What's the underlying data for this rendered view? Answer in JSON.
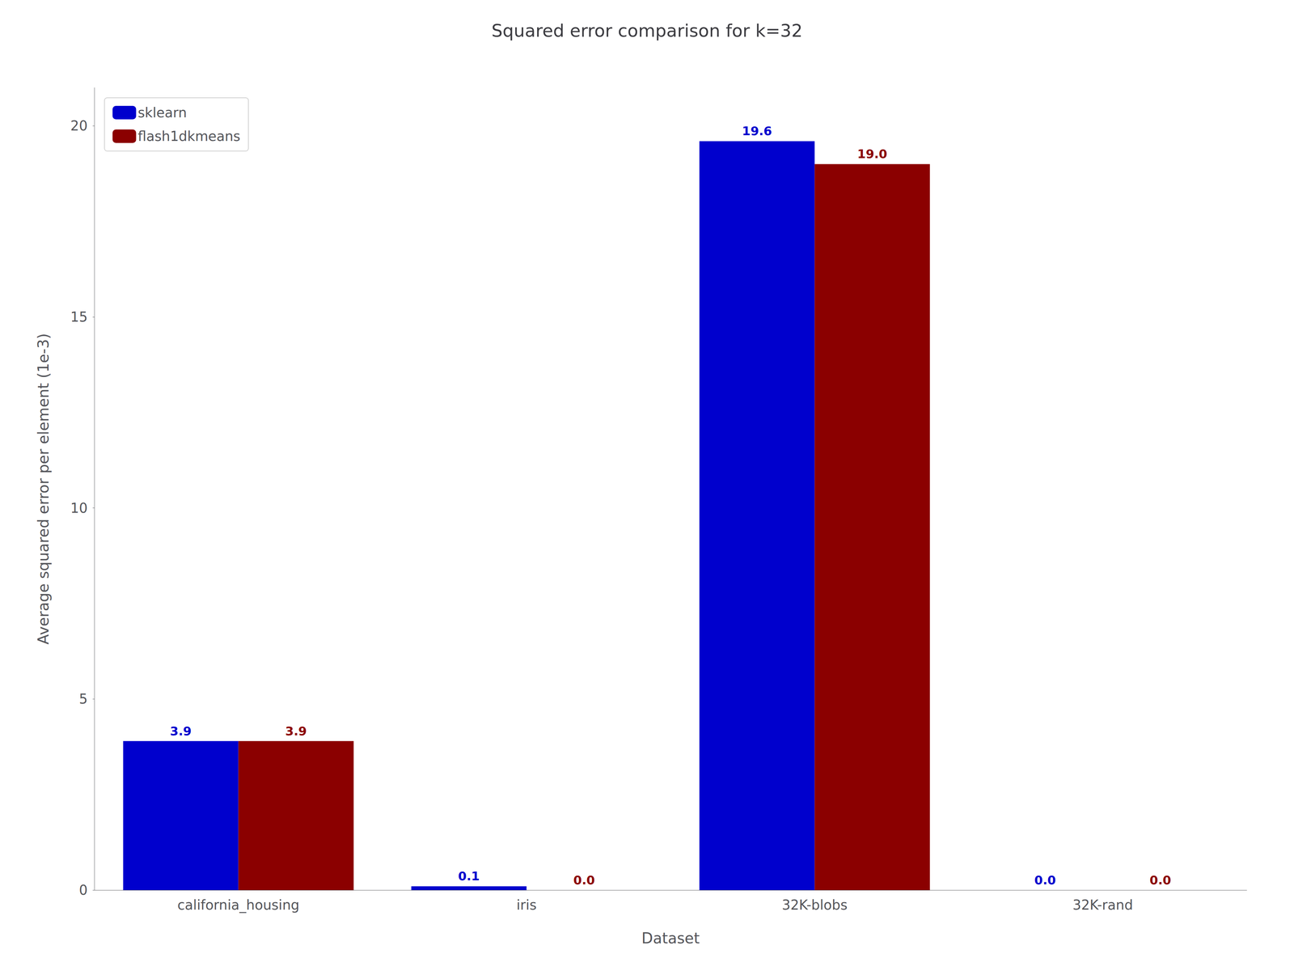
{
  "chart_data": {
    "type": "bar",
    "title": "Squared error comparison for k=32",
    "xlabel": "Dataset",
    "ylabel": "Average squared error per element (1e-3)",
    "categories": [
      "california_housing",
      "iris",
      "32K-blobs",
      "32K-rand"
    ],
    "series": [
      {
        "name": "sklearn",
        "color": "#0000CD",
        "values": [
          3.9,
          0.1,
          19.6,
          0.0
        ],
        "value_labels": [
          "3.9",
          "0.1",
          "19.6",
          "0.0"
        ]
      },
      {
        "name": "flash1dkmeans",
        "color": "#8B0000",
        "values": [
          3.9,
          0.0,
          19.0,
          0.0
        ],
        "value_labels": [
          "3.9",
          "0.0",
          "19.0",
          "0.0"
        ]
      }
    ],
    "ylim": [
      0,
      21
    ],
    "yticks": [
      0,
      5,
      10,
      15,
      20
    ],
    "grid": false,
    "legend": "upper left",
    "data_labels": true
  }
}
